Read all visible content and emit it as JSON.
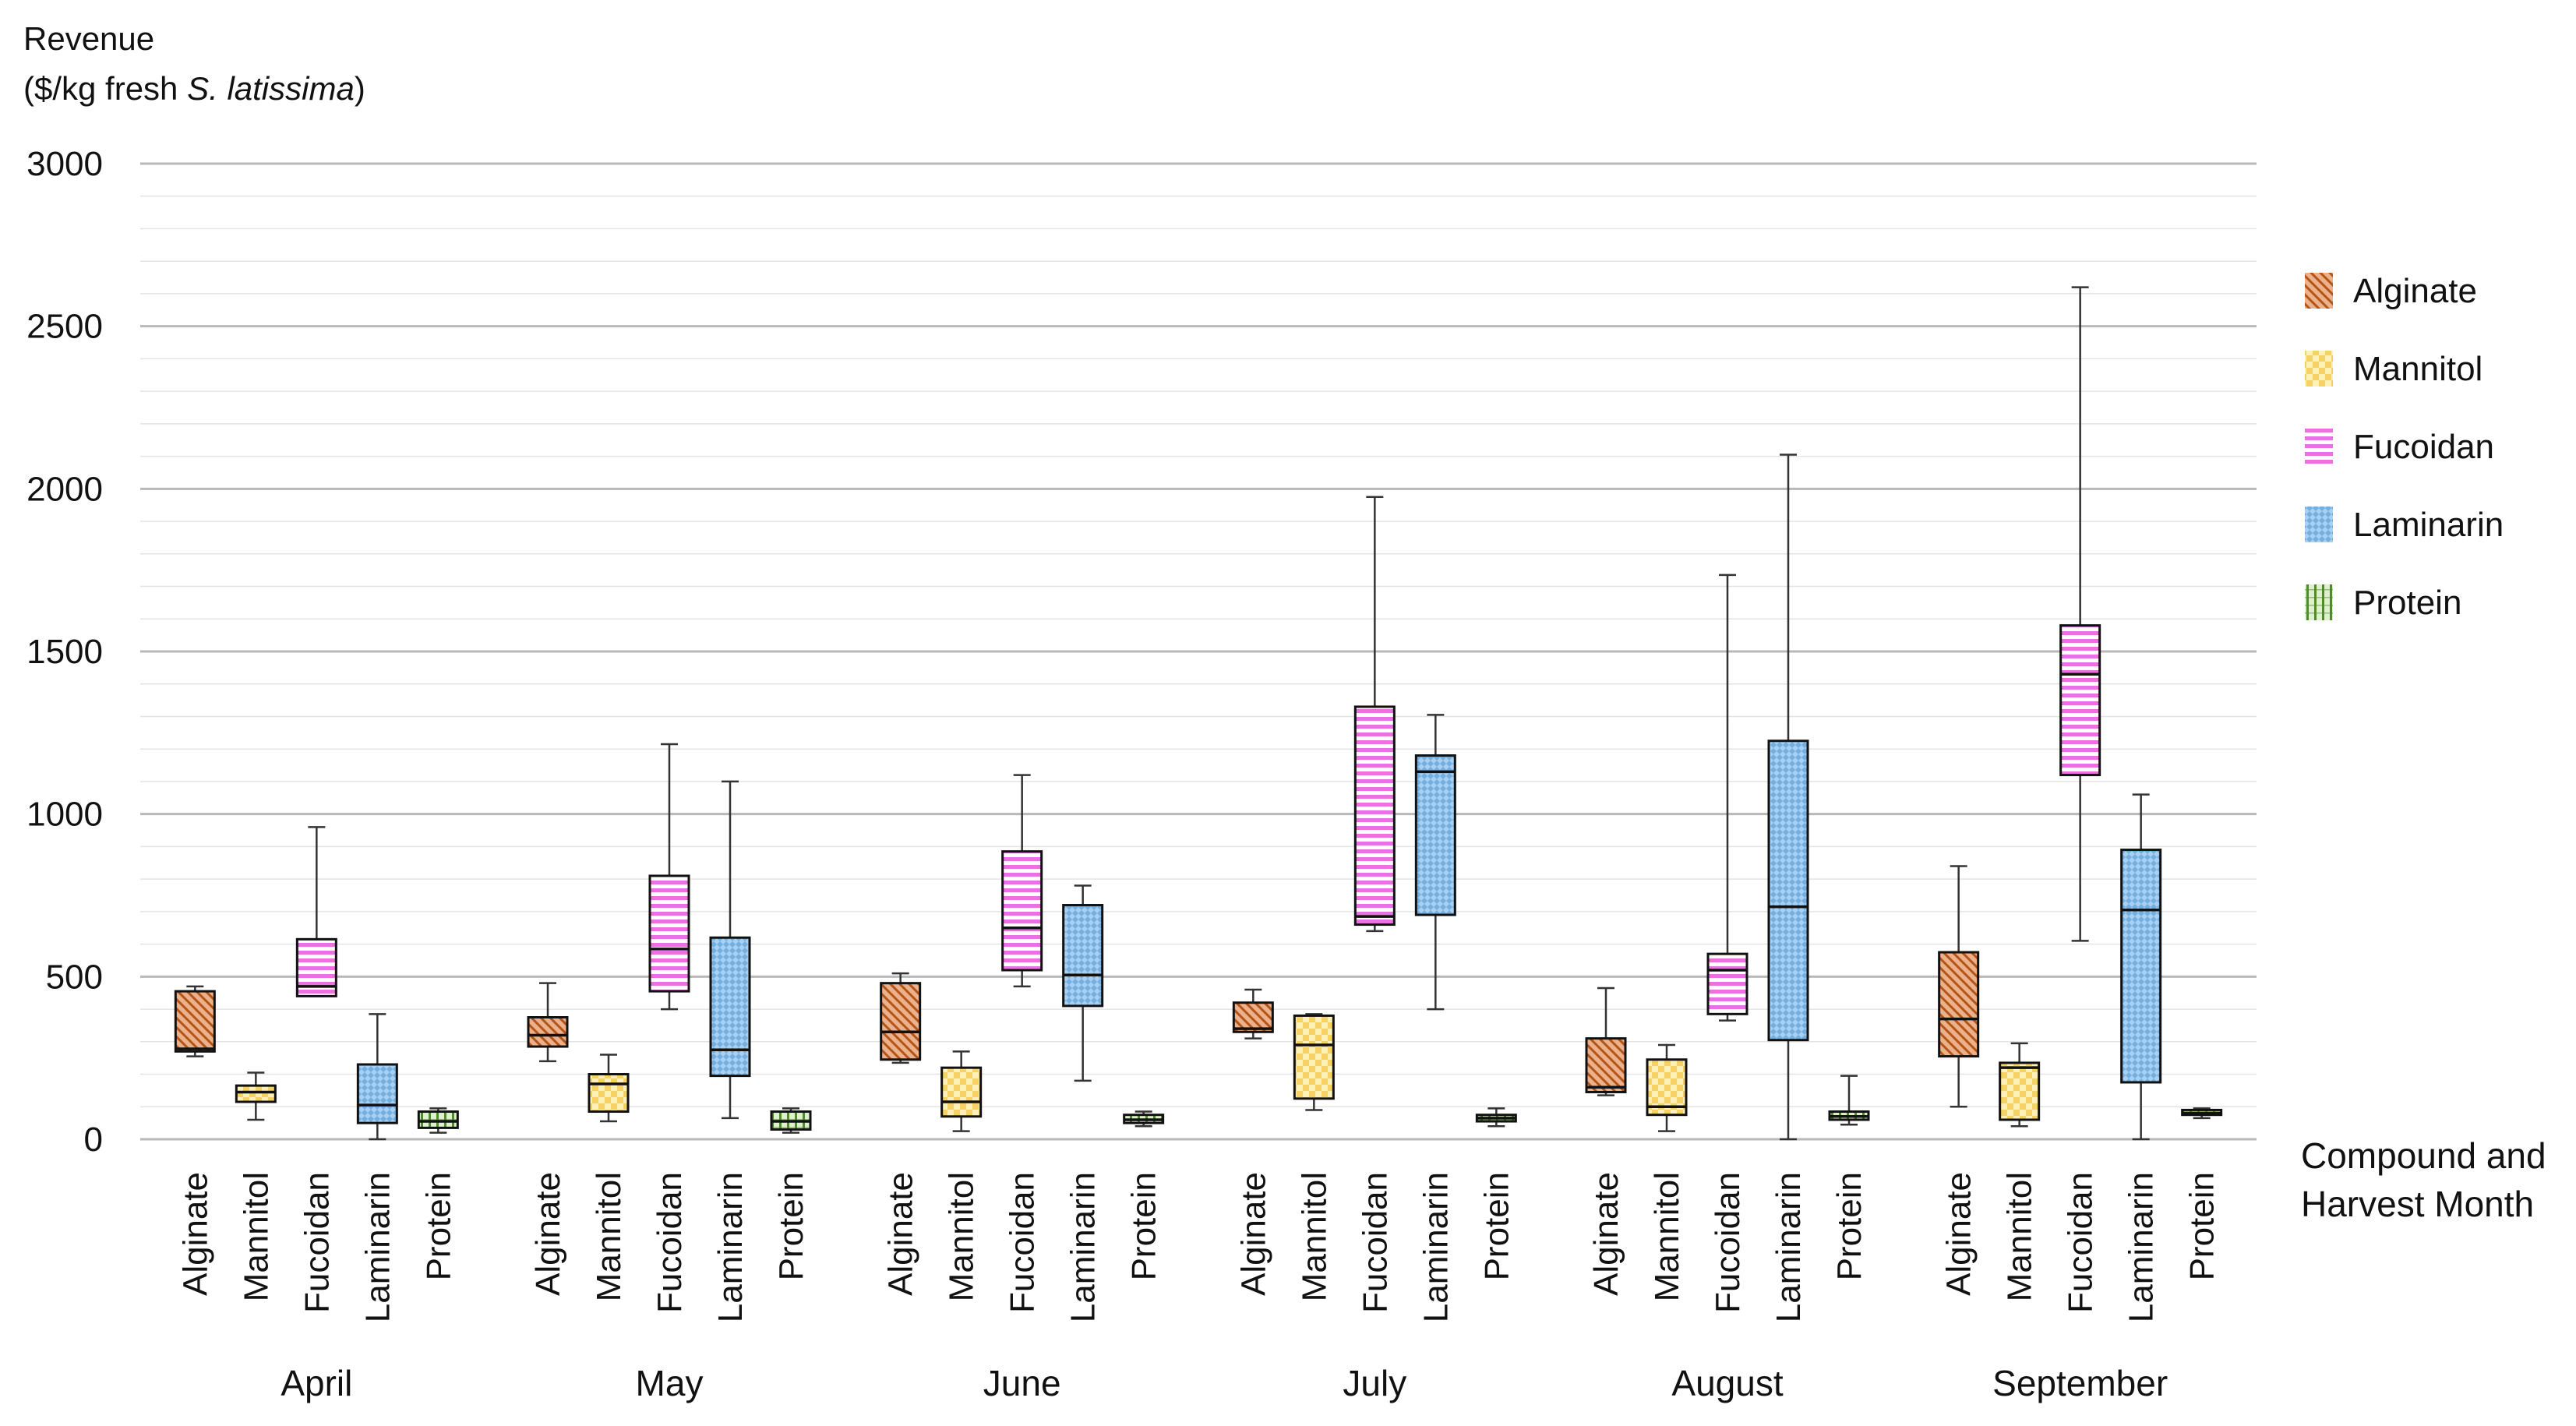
{
  "chart_data": {
    "type": "box",
    "ylabel_line1": "Revenue",
    "ylabel_line2_prefix": "($/kg fresh ",
    "ylabel_line2_italic": "S. latissima",
    "ylabel_line2_suffix": ")",
    "xlabel_line1": "Compound and",
    "xlabel_line2": "Harvest Month",
    "ylim": [
      0,
      3000
    ],
    "yticks": [
      "0",
      "500",
      "1000",
      "1500",
      "2000",
      "2500",
      "3000"
    ],
    "compounds": [
      "Alginate",
      "Mannitol",
      "Fucoidan",
      "Laminarin",
      "Protein"
    ],
    "legend": [
      {
        "name": "Alginate",
        "key": "alginate"
      },
      {
        "name": "Mannitol",
        "key": "mannitol"
      },
      {
        "name": "Fucoidan",
        "key": "fucoidan"
      },
      {
        "name": "Laminarin",
        "key": "laminarin"
      },
      {
        "name": "Protein",
        "key": "protein"
      }
    ],
    "months": [
      {
        "name": "April",
        "boxes": [
          {
            "compound": "Alginate",
            "min": 255,
            "q1": 270,
            "median": 278,
            "q3": 455,
            "max": 470
          },
          {
            "compound": "Mannitol",
            "min": 60,
            "q1": 115,
            "median": 145,
            "q3": 165,
            "max": 205
          },
          {
            "compound": "Fucoidan",
            "min": 440,
            "q1": 440,
            "median": 470,
            "q3": 615,
            "max": 960
          },
          {
            "compound": "Laminarin",
            "min": 0,
            "q1": 50,
            "median": 105,
            "q3": 230,
            "max": 385
          },
          {
            "compound": "Protein",
            "min": 20,
            "q1": 35,
            "median": 55,
            "q3": 85,
            "max": 95
          }
        ]
      },
      {
        "name": "May",
        "boxes": [
          {
            "compound": "Alginate",
            "min": 240,
            "q1": 285,
            "median": 320,
            "q3": 375,
            "max": 480
          },
          {
            "compound": "Mannitol",
            "min": 55,
            "q1": 85,
            "median": 170,
            "q3": 200,
            "max": 260
          },
          {
            "compound": "Fucoidan",
            "min": 400,
            "q1": 455,
            "median": 585,
            "q3": 810,
            "max": 1215
          },
          {
            "compound": "Laminarin",
            "min": 65,
            "q1": 195,
            "median": 275,
            "q3": 620,
            "max": 1100
          },
          {
            "compound": "Protein",
            "min": 20,
            "q1": 30,
            "median": 55,
            "q3": 85,
            "max": 95
          }
        ]
      },
      {
        "name": "June",
        "boxes": [
          {
            "compound": "Alginate",
            "min": 235,
            "q1": 245,
            "median": 330,
            "q3": 480,
            "max": 510
          },
          {
            "compound": "Mannitol",
            "min": 25,
            "q1": 70,
            "median": 115,
            "q3": 220,
            "max": 270
          },
          {
            "compound": "Fucoidan",
            "min": 470,
            "q1": 520,
            "median": 650,
            "q3": 885,
            "max": 1120
          },
          {
            "compound": "Laminarin",
            "min": 180,
            "q1": 410,
            "median": 505,
            "q3": 720,
            "max": 780
          },
          {
            "compound": "Protein",
            "min": 40,
            "q1": 50,
            "median": 60,
            "q3": 75,
            "max": 85
          }
        ]
      },
      {
        "name": "July",
        "boxes": [
          {
            "compound": "Alginate",
            "min": 310,
            "q1": 330,
            "median": 340,
            "q3": 420,
            "max": 460
          },
          {
            "compound": "Mannitol",
            "min": 90,
            "q1": 125,
            "median": 290,
            "q3": 380,
            "max": 385
          },
          {
            "compound": "Fucoidan",
            "min": 640,
            "q1": 660,
            "median": 685,
            "q3": 1330,
            "max": 1975
          },
          {
            "compound": "Laminarin",
            "min": 400,
            "q1": 690,
            "median": 1130,
            "q3": 1180,
            "max": 1305
          },
          {
            "compound": "Protein",
            "min": 40,
            "q1": 55,
            "median": 65,
            "q3": 75,
            "max": 95
          }
        ]
      },
      {
        "name": "August",
        "boxes": [
          {
            "compound": "Alginate",
            "min": 135,
            "q1": 145,
            "median": 160,
            "q3": 310,
            "max": 465
          },
          {
            "compound": "Mannitol",
            "min": 25,
            "q1": 75,
            "median": 100,
            "q3": 245,
            "max": 290
          },
          {
            "compound": "Fucoidan",
            "min": 365,
            "q1": 385,
            "median": 520,
            "q3": 570,
            "max": 1735
          },
          {
            "compound": "Laminarin",
            "min": 0,
            "q1": 305,
            "median": 715,
            "q3": 1225,
            "max": 2105
          },
          {
            "compound": "Protein",
            "min": 45,
            "q1": 60,
            "median": 70,
            "q3": 85,
            "max": 195
          }
        ]
      },
      {
        "name": "September",
        "boxes": [
          {
            "compound": "Alginate",
            "min": 100,
            "q1": 255,
            "median": 370,
            "q3": 575,
            "max": 840
          },
          {
            "compound": "Mannitol",
            "min": 40,
            "q1": 60,
            "median": 220,
            "q3": 235,
            "max": 295
          },
          {
            "compound": "Fucoidan",
            "min": 610,
            "q1": 1120,
            "median": 1430,
            "q3": 1580,
            "max": 2620
          },
          {
            "compound": "Laminarin",
            "min": 0,
            "q1": 175,
            "median": 705,
            "q3": 890,
            "max": 1060
          },
          {
            "compound": "Protein",
            "min": 65,
            "q1": 75,
            "median": 80,
            "q3": 90,
            "max": 95
          }
        ]
      }
    ]
  },
  "colors": {
    "alginate_fill": "#ecb18a",
    "alginate_line": "#b35418",
    "mannitol_fill": "#fff0b8",
    "mannitol_line": "#f2c230",
    "fucoidan_fill": "#ffd2f9",
    "fucoidan_line": "#e44ed8",
    "laminarin_fill": "#a9d0f0",
    "laminarin_line": "#4d97d6",
    "protein_fill": "#dff0cf",
    "protein_line": "#4f8a2c",
    "grid_major": "#b8b8b8",
    "grid_minor": "#e4e4e4",
    "box_outline": "#111111"
  }
}
